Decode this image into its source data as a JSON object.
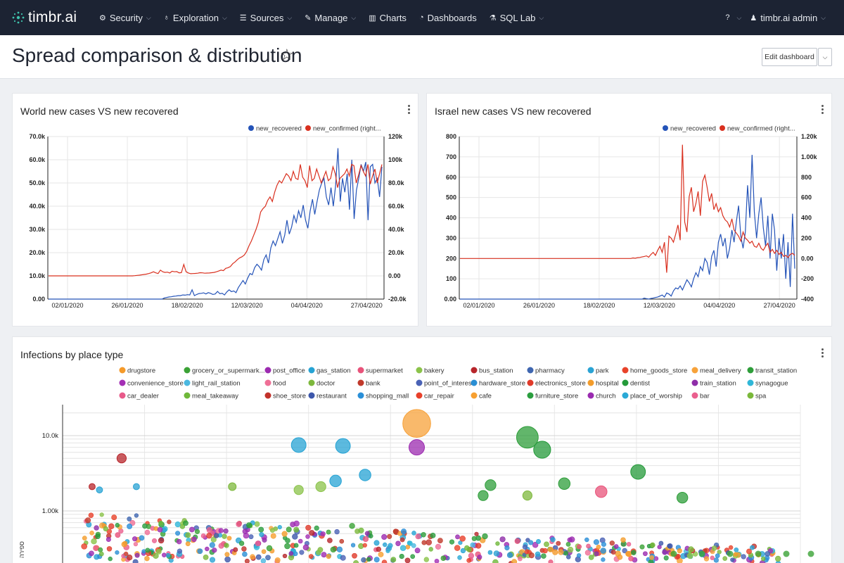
{
  "nav": {
    "logo": "timbr.ai",
    "items": [
      {
        "label": "Security",
        "icon": "gears-icon",
        "caret": true
      },
      {
        "label": "Exploration",
        "icon": "lightbulb-icon",
        "caret": true
      },
      {
        "label": "Sources",
        "icon": "database-icon",
        "caret": true
      },
      {
        "label": "Manage",
        "icon": "wrench-icon",
        "caret": true
      },
      {
        "label": "Charts",
        "icon": "bar-chart-icon",
        "caret": false
      },
      {
        "label": "Dashboards",
        "icon": "dashboard-icon",
        "caret": false
      },
      {
        "label": "SQL Lab",
        "icon": "flask-icon",
        "caret": true
      }
    ],
    "help_icon": "help-icon",
    "user": "timbr.ai admin"
  },
  "header": {
    "title": "Spread comparison & distribution",
    "edit_label": "Edit dashboard"
  },
  "colors": {
    "recovered": "#2453b8",
    "confirmed": "#d9301f"
  },
  "chart_data": [
    {
      "type": "line",
      "title": "World new cases VS new recovered",
      "legend": [
        "new_recovered",
        "new_confirmed (right..."
      ],
      "x_ticks": [
        "02/01/2020",
        "26/01/2020",
        "18/02/2020",
        "12/03/2020",
        "04/04/2020",
        "27/04/2020"
      ],
      "y_ticks_left": [
        "70.0k",
        "60.0k",
        "50.0k",
        "40.0k",
        "30.0k",
        "20.0k",
        "10.0k",
        "0.00"
      ],
      "y_ticks_right": [
        "120k",
        "100k",
        "80.0k",
        "60.0k",
        "40.0k",
        "20.0k",
        "0.00",
        "-20.0k"
      ],
      "ylim_left": [
        0,
        70000
      ],
      "ylim_right": [
        -20000,
        120000
      ],
      "series": [
        {
          "name": "new_recovered",
          "axis": "left",
          "values": [
            0,
            0,
            0,
            0,
            0,
            0,
            0,
            0,
            0,
            0,
            0,
            0,
            0,
            0,
            0,
            0,
            0,
            0,
            0,
            0,
            0,
            0,
            0,
            0,
            0,
            0,
            0,
            0,
            0,
            0,
            0,
            0,
            0,
            0,
            0,
            0,
            0,
            0,
            0,
            0,
            0,
            0,
            0,
            0,
            0,
            0,
            0,
            0,
            0,
            0,
            500,
            700,
            900,
            1000,
            1200,
            1300,
            1500,
            1500,
            1800,
            1700,
            1900,
            1800,
            4000,
            1500,
            2000,
            2400,
            2500,
            2700,
            2200,
            2800,
            2500,
            2000,
            2200,
            3300,
            2300,
            2500,
            1800,
            3100,
            4000,
            3200,
            3500,
            2800,
            5000,
            6500,
            8000,
            6500,
            9000,
            11000,
            10500,
            13500,
            15000,
            14000,
            12500,
            17000,
            19000,
            15500,
            22000,
            25000,
            23000,
            26000,
            29000,
            24000,
            27500,
            34000,
            28000,
            31000,
            36000,
            33000,
            38000,
            35000,
            40500,
            34000,
            30500,
            38000,
            43000,
            36500,
            42000,
            47000,
            50000,
            52000,
            44000,
            40500,
            48000,
            40000,
            49000,
            65000,
            42000,
            52000,
            46000,
            54000,
            38500,
            60000,
            34500,
            47000,
            52000,
            58000,
            55000,
            59000,
            34000,
            57000,
            58000,
            50000,
            52000,
            44000,
            57000
          ]
        },
        {
          "name": "new_confirmed",
          "axis": "right",
          "values": [
            0,
            0,
            0,
            0,
            0,
            0,
            0,
            0,
            0,
            0,
            0,
            0,
            0,
            0,
            0,
            0,
            0,
            0,
            0,
            0,
            0,
            0,
            0,
            0,
            0,
            0,
            0,
            0,
            0,
            0,
            0,
            0,
            0,
            0,
            0,
            0,
            0,
            200,
            400,
            600,
            900,
            1200,
            1500,
            2000,
            2600,
            3500,
            2600,
            2000,
            5000,
            3500,
            3000,
            3200,
            2500,
            4000,
            3500,
            3700,
            2600,
            2800,
            9800,
            3500,
            2500,
            1900,
            2000,
            2100,
            2300,
            2700,
            2600,
            2300,
            2400,
            2500,
            2700,
            3000,
            3500,
            4200,
            5000,
            4500,
            6500,
            7000,
            8000,
            10500,
            12000,
            14000,
            15500,
            16500,
            18000,
            21000,
            26000,
            30000,
            35000,
            40000,
            46000,
            55000,
            58000,
            60000,
            65000,
            68000,
            64000,
            72000,
            78000,
            82000,
            80000,
            84000,
            88000,
            86000,
            82000,
            90000,
            84000,
            83000,
            96000,
            85000,
            82000,
            76000,
            95000,
            82000,
            84000,
            92000,
            86000,
            80000,
            85000,
            90000,
            82000,
            84000,
            94000,
            88000,
            76000,
            84000,
            86000,
            88000,
            92000,
            86000,
            96000,
            95000,
            80000,
            87000,
            95000,
            90000,
            86000,
            96000,
            79000,
            86000,
            92000,
            80000,
            88000,
            96000
          ]
        }
      ]
    },
    {
      "type": "line",
      "title": "Israel new cases VS new recovered",
      "legend": [
        "new_recovered",
        "new_confirmed (right..."
      ],
      "x_ticks": [
        "02/01/2020",
        "26/01/2020",
        "18/02/2020",
        "12/03/2020",
        "04/04/2020",
        "27/04/2020"
      ],
      "y_ticks_left": [
        "800",
        "700",
        "600",
        "500",
        "400",
        "300",
        "200",
        "100",
        "0.00"
      ],
      "y_ticks_right": [
        "1.20k",
        "1.00k",
        "800",
        "600",
        "400",
        "200",
        "0.00",
        "-200",
        "-400"
      ],
      "ylim_left": [
        0,
        800
      ],
      "ylim_right": [
        -400,
        1200
      ],
      "series": [
        {
          "name": "new_recovered",
          "axis": "left",
          "values": [
            0,
            0,
            0,
            0,
            0,
            0,
            0,
            0,
            0,
            0,
            0,
            0,
            0,
            0,
            0,
            0,
            0,
            0,
            0,
            0,
            0,
            0,
            0,
            0,
            0,
            0,
            0,
            0,
            0,
            0,
            0,
            0,
            0,
            0,
            0,
            0,
            0,
            0,
            0,
            0,
            0,
            0,
            0,
            0,
            0,
            0,
            0,
            0,
            0,
            0,
            0,
            0,
            0,
            0,
            0,
            0,
            0,
            0,
            0,
            0,
            0,
            0,
            0,
            0,
            0,
            0,
            0,
            0,
            0,
            0,
            0,
            0,
            0,
            0,
            0,
            0,
            0,
            0,
            0,
            0,
            0,
            0,
            5,
            2,
            0,
            3,
            5,
            8,
            10,
            15,
            20,
            10,
            30,
            25,
            15,
            40,
            55,
            50,
            65,
            45,
            70,
            95,
            80,
            60,
            100,
            130,
            110,
            160,
            140,
            200,
            180,
            120,
            210,
            240,
            160,
            280,
            320,
            260,
            300,
            200,
            250,
            340,
            280,
            380,
            460,
            310,
            250,
            330,
            560,
            400,
            710,
            430,
            300,
            420,
            500,
            350,
            260,
            410,
            200,
            420,
            340,
            140,
            300,
            200,
            320,
            100,
            280,
            60,
            420,
            150
          ]
        },
        {
          "name": "new_confirmed",
          "axis": "right",
          "values": [
            0,
            0,
            0,
            0,
            0,
            0,
            0,
            0,
            0,
            0,
            0,
            0,
            0,
            0,
            0,
            0,
            0,
            0,
            0,
            0,
            0,
            0,
            0,
            0,
            0,
            0,
            0,
            0,
            0,
            0,
            0,
            0,
            0,
            0,
            0,
            0,
            0,
            0,
            0,
            0,
            0,
            0,
            0,
            0,
            0,
            0,
            0,
            0,
            0,
            0,
            0,
            0,
            0,
            0,
            0,
            0,
            0,
            0,
            0,
            0,
            0,
            0,
            0,
            0,
            0,
            0,
            0,
            0,
            0,
            0,
            0,
            0,
            0,
            0,
            0,
            0,
            0,
            5,
            2,
            8,
            10,
            15,
            20,
            25,
            12,
            40,
            60,
            30,
            80,
            120,
            60,
            160,
            -140,
            220,
            200,
            160,
            240,
            330,
            180,
            1120,
            360,
            260,
            610,
            700,
            460,
            540,
            660,
            420,
            760,
            820,
            700,
            560,
            640,
            480,
            540,
            460,
            500,
            420,
            380,
            360,
            310,
            390,
            280,
            250,
            220,
            170,
            260,
            200,
            180,
            150,
            170,
            120,
            110,
            150,
            100,
            80,
            120,
            150,
            60,
            90,
            50,
            80,
            40,
            60,
            20,
            30,
            10,
            40,
            50,
            30
          ]
        }
      ]
    },
    {
      "type": "scatter",
      "title": "Infections by place type",
      "y_ticks": [
        "10.0k",
        "1.00k"
      ],
      "y_scale": "log",
      "y_axis_label": "ספירה",
      "legend": [
        {
          "name": "drugstore",
          "color": "#f59a2a"
        },
        {
          "name": "grocery_or_supermark...",
          "color": "#3ba236"
        },
        {
          "name": "post_office",
          "color": "#9c2bb0"
        },
        {
          "name": "gas_station",
          "color": "#26a3d4"
        },
        {
          "name": "supermarket",
          "color": "#e8537a"
        },
        {
          "name": "bakery",
          "color": "#8bc34a"
        },
        {
          "name": "bus_station",
          "color": "#b7252b"
        },
        {
          "name": "pharmacy",
          "color": "#3f66b0"
        },
        {
          "name": "park",
          "color": "#2aa3d4"
        },
        {
          "name": "home_goods_store",
          "color": "#e8432a"
        },
        {
          "name": "meal_delivery",
          "color": "#f7a23a"
        },
        {
          "name": "transit_station",
          "color": "#2e9e3a"
        },
        {
          "name": "convenience_store",
          "color": "#a42fb5"
        },
        {
          "name": "light_rail_station",
          "color": "#4bb8e0"
        },
        {
          "name": "food",
          "color": "#ef6f96"
        },
        {
          "name": "doctor",
          "color": "#7db83c"
        },
        {
          "name": "bank",
          "color": "#c0392b"
        },
        {
          "name": "point_of_interest",
          "color": "#4a62b5"
        },
        {
          "name": "hardware_store",
          "color": "#2b8fd4"
        },
        {
          "name": "electronics_store",
          "color": "#e03a2a"
        },
        {
          "name": "hospital",
          "color": "#f39c2b"
        },
        {
          "name": "dentist",
          "color": "#249a3a"
        },
        {
          "name": "train_station",
          "color": "#8e2da8"
        },
        {
          "name": "synagogue",
          "color": "#30b7d8"
        },
        {
          "name": "car_dealer",
          "color": "#e85a8a"
        },
        {
          "name": "meal_takeaway",
          "color": "#6fb83a"
        },
        {
          "name": "shoe_store",
          "color": "#c2322b"
        },
        {
          "name": "restaurant",
          "color": "#3d57ab"
        },
        {
          "name": "shopping_mall",
          "color": "#2a8fd8"
        },
        {
          "name": "car_repair",
          "color": "#e8402a"
        },
        {
          "name": "cafe",
          "color": "#f7a030"
        },
        {
          "name": "furniture_store",
          "color": "#2a9e3e"
        },
        {
          "name": "church",
          "color": "#9a2bb0"
        },
        {
          "name": "place_of_worship",
          "color": "#2aa9d6"
        },
        {
          "name": "bar",
          "color": "#ea5f8e"
        },
        {
          "name": "spa",
          "color": "#7ab83a"
        }
      ],
      "bubbles": [
        {
          "cat": "meal_delivery",
          "x": 0.48,
          "y": 14500,
          "r": 3.6
        },
        {
          "cat": "transit_station",
          "x": 0.63,
          "y": 9500,
          "r": 2.8
        },
        {
          "cat": "dentist",
          "x": 0.65,
          "y": 6500,
          "r": 2.2
        },
        {
          "cat": "gas_station",
          "x": 0.32,
          "y": 7500,
          "r": 1.9
        },
        {
          "cat": "gas_station",
          "x": 0.38,
          "y": 7300,
          "r": 1.9
        },
        {
          "cat": "post_office",
          "x": 0.48,
          "y": 7000,
          "r": 2.0
        },
        {
          "cat": "bus_station",
          "x": 0.08,
          "y": 5000,
          "r": 1.2
        },
        {
          "cat": "gas_station",
          "x": 0.41,
          "y": 3000,
          "r": 1.5
        },
        {
          "cat": "gas_station",
          "x": 0.37,
          "y": 2500,
          "r": 1.5
        },
        {
          "cat": "dentist",
          "x": 0.78,
          "y": 3300,
          "r": 1.9
        },
        {
          "cat": "bakery",
          "x": 0.35,
          "y": 2100,
          "r": 1.3
        },
        {
          "cat": "bakery",
          "x": 0.32,
          "y": 1900,
          "r": 1.2
        },
        {
          "cat": "transit_station",
          "x": 0.58,
          "y": 2200,
          "r": 1.4
        },
        {
          "cat": "transit_station",
          "x": 0.68,
          "y": 2300,
          "r": 1.5
        },
        {
          "cat": "supermarket",
          "x": 0.73,
          "y": 1800,
          "r": 1.5
        },
        {
          "cat": "transit_station",
          "x": 0.57,
          "y": 1600,
          "r": 1.3
        },
        {
          "cat": "doctor",
          "x": 0.63,
          "y": 1600,
          "r": 1.2
        },
        {
          "cat": "transit_station",
          "x": 0.84,
          "y": 1500,
          "r": 1.4
        },
        {
          "cat": "doctor",
          "x": 0.23,
          "y": 2100,
          "r": 1.0
        },
        {
          "cat": "bus_station",
          "x": 0.04,
          "y": 2100,
          "r": 0.8
        },
        {
          "cat": "park",
          "x": 0.1,
          "y": 2100,
          "r": 0.8
        },
        {
          "cat": "gas_station",
          "x": 0.05,
          "y": 1900,
          "r": 0.8
        }
      ]
    }
  ]
}
